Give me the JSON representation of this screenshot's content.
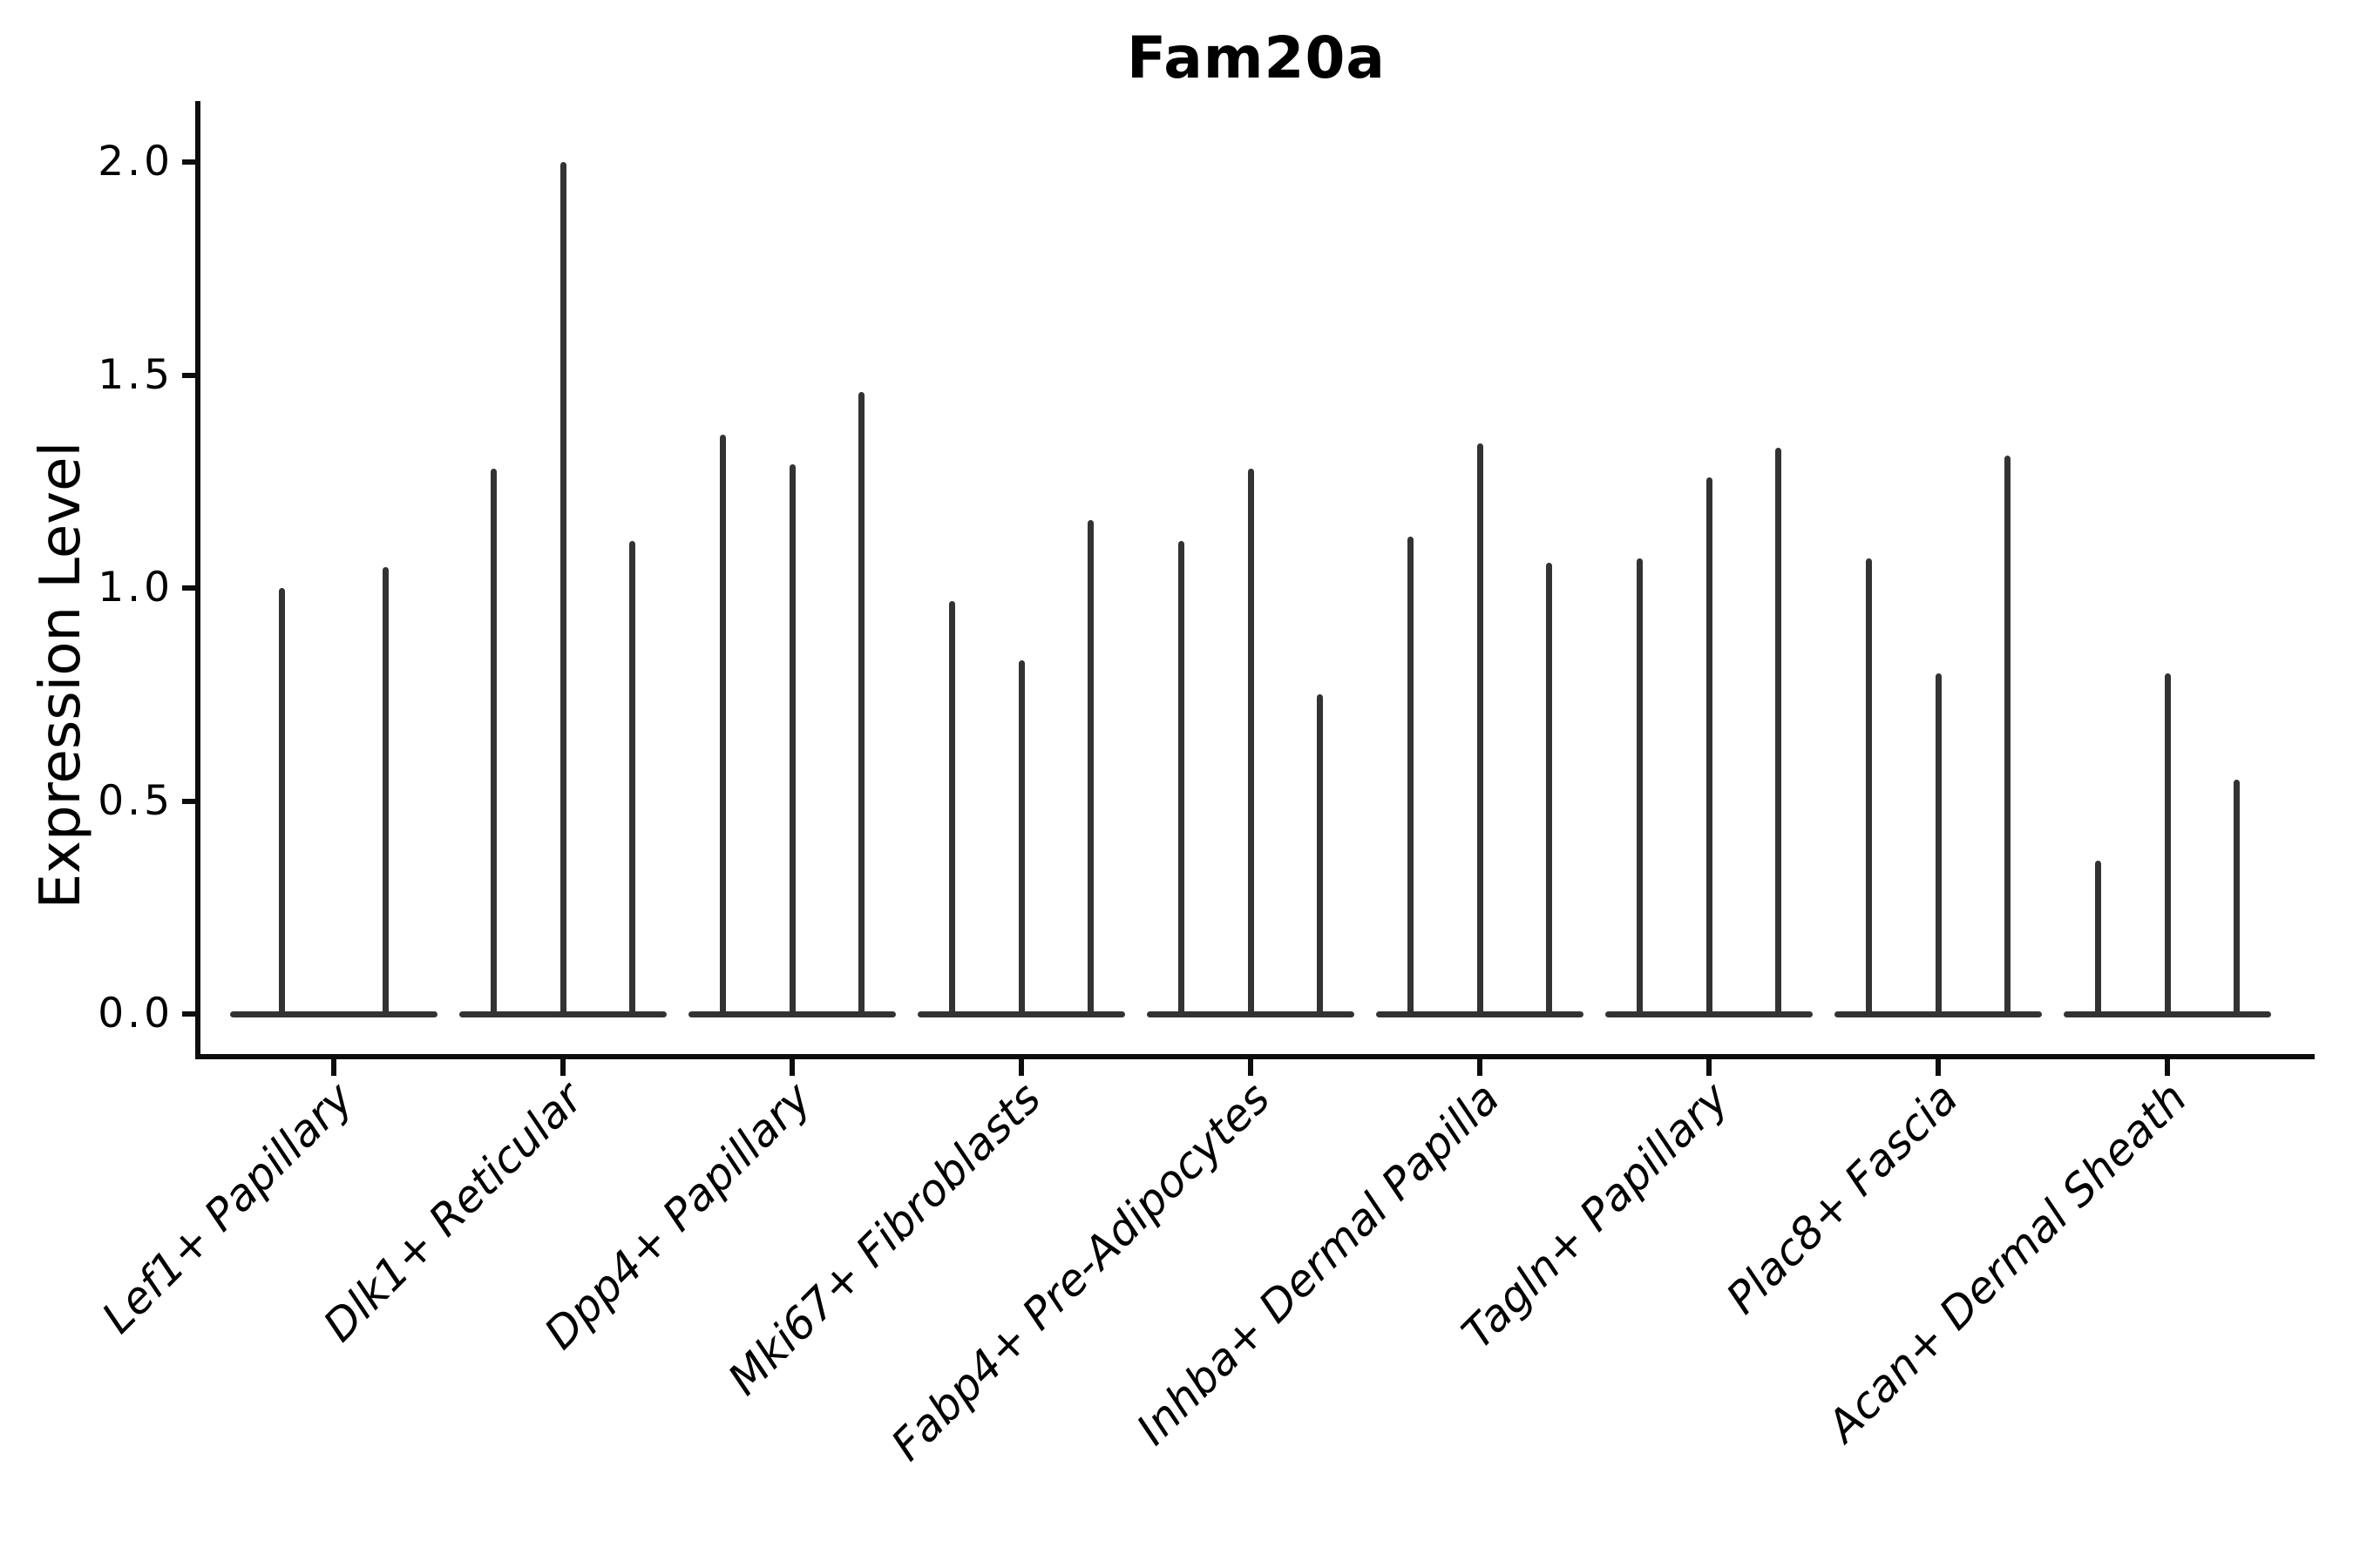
{
  "chart_data": {
    "type": "violin",
    "title": "Fam20a",
    "ylabel": "Expression Level",
    "xlabel": "",
    "ylim": [
      0,
      2.14
    ],
    "yticks": [
      "0.0",
      "0.5",
      "1.0",
      "1.5",
      "2.0"
    ],
    "ytick_values": [
      0.0,
      0.5,
      1.0,
      1.5,
      2.0
    ],
    "grid": false,
    "legend": "none",
    "violin_color": "#333333",
    "axis_color": "#0d0d0d",
    "description": "Violin plot of Fam20a expression; violins are collapsed to a flat base at 0 with a thin spike up to each violin's maximum expression value. Each category contains 2-3 adjacent violins.",
    "categories": [
      {
        "label": "Lef1+ Papillary",
        "spike_maxima": [
          1.0,
          1.05
        ]
      },
      {
        "label": "Dlk1+ Reticular",
        "spike_maxima": [
          1.28,
          2.0,
          1.11
        ]
      },
      {
        "label": "Dpp4+ Papillary",
        "spike_maxima": [
          1.36,
          1.29,
          1.46
        ]
      },
      {
        "label": "Mki67+ Fibroblasts",
        "spike_maxima": [
          0.97,
          0.83,
          1.16
        ]
      },
      {
        "label": "Fabp4+ Pre-Adipocytes",
        "spike_maxima": [
          1.11,
          1.28,
          0.75
        ]
      },
      {
        "label": "Inhba+ Dermal Papilla",
        "spike_maxima": [
          1.12,
          1.34,
          1.06
        ]
      },
      {
        "label": "Tagln+ Papillary",
        "spike_maxima": [
          1.07,
          1.26,
          1.33
        ]
      },
      {
        "label": "Plac8+ Fascia",
        "spike_maxima": [
          1.07,
          0.8,
          1.31
        ]
      },
      {
        "label": "Acan+ Dermal Sheath",
        "spike_maxima": [
          0.36,
          0.8,
          0.55
        ]
      }
    ]
  }
}
